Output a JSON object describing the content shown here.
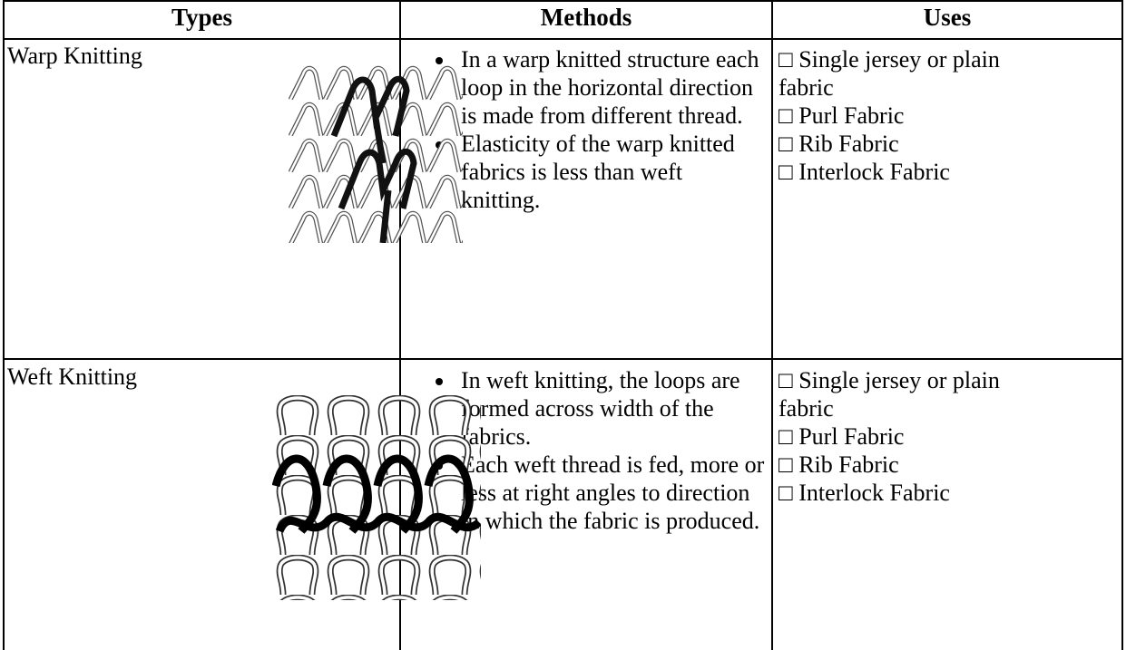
{
  "table": {
    "header": [
      "Types",
      "Methods",
      "Uses"
    ],
    "rows": [
      {
        "type": "Warp Knitting",
        "methods": [
          "In a warp knitted structure each loop in the horizontal direction is made from different thread.",
          "Elasticity of the warp knitted fabrics is less than weft knitting."
        ],
        "uses": [
          "□ Single jersey or plain fabric",
          "□ Purl Fabric",
          "□ Rib Fabric",
          "□ Interlock Fabric"
        ]
      },
      {
        "type": "Weft Knitting",
        "methods": [
          "In weft knitting, the loops are formed across width of the fabrics.",
          "Each weft thread is fed, more or less at right angles to direction in which the fabric is produced."
        ],
        "uses": [
          "□ Single jersey or plain fabric",
          "□ Purl Fabric",
          "□ Rib Fabric",
          "□ Interlock Fabric"
        ]
      }
    ]
  }
}
